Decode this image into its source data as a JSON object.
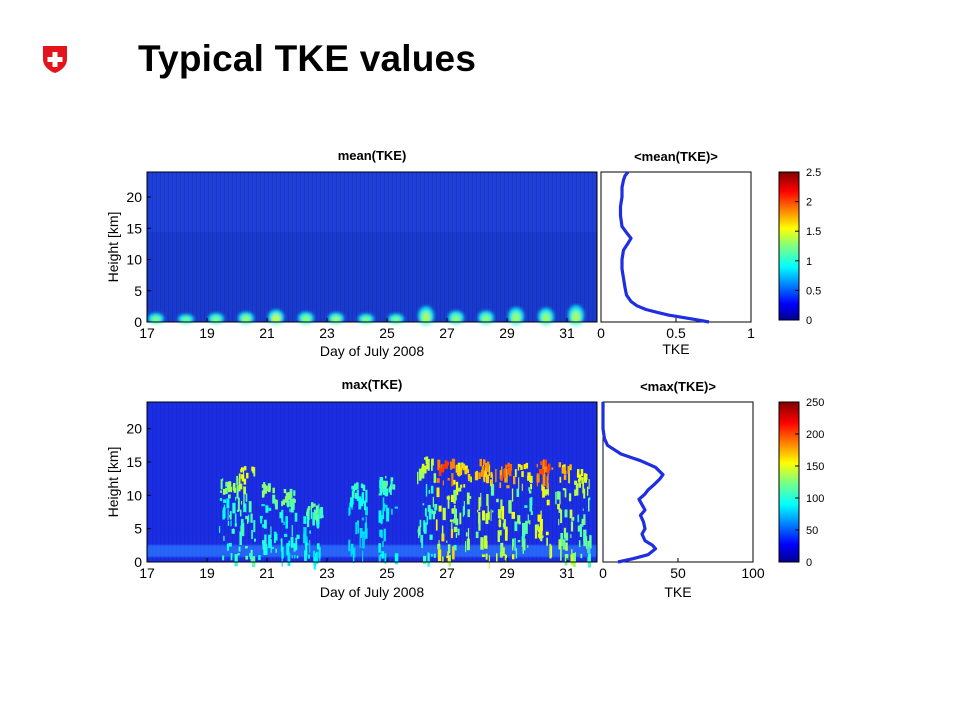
{
  "page": {
    "title": "Typical TKE values",
    "logo": "swiss-cross-shield-icon",
    "accent": "#e3141b"
  },
  "chart_data": [
    {
      "type": "heatmap",
      "title": "mean(TKE)",
      "xlabel": "Day of July 2008",
      "ylabel": "Height [km]",
      "xlim": [
        17,
        32
      ],
      "ylim": [
        0,
        24
      ],
      "xticks": [
        "17",
        "19",
        "21",
        "23",
        "25",
        "27",
        "29",
        "31"
      ],
      "yticks": [
        "0",
        "5",
        "10",
        "15",
        "20"
      ],
      "bursts": [
        {
          "day": 17.3,
          "height_top": 1.6,
          "value": 1.0
        },
        {
          "day": 18.3,
          "height_top": 1.4,
          "value": 0.9
        },
        {
          "day": 19.3,
          "height_top": 1.6,
          "value": 1.0
        },
        {
          "day": 20.3,
          "height_top": 1.8,
          "value": 1.2
        },
        {
          "day": 21.3,
          "height_top": 2.2,
          "value": 1.5
        },
        {
          "day": 22.3,
          "height_top": 1.8,
          "value": 1.1
        },
        {
          "day": 23.3,
          "height_top": 1.7,
          "value": 1.2
        },
        {
          "day": 24.3,
          "height_top": 1.5,
          "value": 1.0
        },
        {
          "day": 25.3,
          "height_top": 1.5,
          "value": 1.0
        },
        {
          "day": 26.3,
          "height_top": 2.8,
          "value": 1.3
        },
        {
          "day": 27.3,
          "height_top": 2.0,
          "value": 1.1
        },
        {
          "day": 28.3,
          "height_top": 2.0,
          "value": 1.1
        },
        {
          "day": 29.3,
          "height_top": 2.6,
          "value": 1.2
        },
        {
          "day": 30.3,
          "height_top": 2.5,
          "value": 1.2
        },
        {
          "day": 31.3,
          "height_top": 3.0,
          "value": 1.3
        }
      ],
      "colorbar": {
        "min": 0,
        "max": 2.5,
        "ticks": [
          "0",
          "0.5",
          "1",
          "1.5",
          "2",
          "2.5"
        ]
      },
      "colormap": "jet"
    },
    {
      "type": "line",
      "title": "<mean(TKE)>",
      "xlabel": "TKE",
      "xlim": [
        0,
        1
      ],
      "ylim": [
        0,
        24
      ],
      "xticks": [
        "0",
        "0.5",
        "1"
      ],
      "series": [
        {
          "color": "#1f2ee0",
          "x": [
            0.72,
            0.65,
            0.55,
            0.45,
            0.38,
            0.3,
            0.24,
            0.2,
            0.17,
            0.16,
            0.15,
            0.14,
            0.14,
            0.15,
            0.18,
            0.2,
            0.17,
            0.14,
            0.13,
            0.13,
            0.14,
            0.14,
            0.15,
            0.16,
            0.18
          ],
          "y": [
            0,
            0.3,
            0.7,
            1.1,
            1.5,
            2.0,
            2.6,
            3.3,
            4.3,
            5.5,
            7,
            8.5,
            10,
            11.5,
            12.6,
            13.4,
            14.3,
            15.3,
            17,
            18.5,
            20,
            21.5,
            22.7,
            23.4,
            24
          ]
        }
      ]
    },
    {
      "type": "heatmap",
      "title": "max(TKE)",
      "xlabel": "Day of July 2008",
      "ylabel": "Height [km]",
      "xlim": [
        17,
        32
      ],
      "ylim": [
        0,
        24
      ],
      "xticks": [
        "17",
        "19",
        "21",
        "23",
        "25",
        "27",
        "29",
        "31"
      ],
      "yticks": [
        "0",
        "5",
        "10",
        "15",
        "20"
      ],
      "columns": [
        {
          "day": 19.7,
          "height_top": 13,
          "value": 95
        },
        {
          "day": 20.3,
          "height_top": 14.5,
          "value": 120
        },
        {
          "day": 21.0,
          "height_top": 12,
          "value": 90
        },
        {
          "day": 21.7,
          "height_top": 11,
          "value": 85
        },
        {
          "day": 22.5,
          "height_top": 9,
          "value": 75
        },
        {
          "day": 24.0,
          "height_top": 12,
          "value": 60
        },
        {
          "day": 25.0,
          "height_top": 13,
          "value": 70
        },
        {
          "day": 26.3,
          "height_top": 16,
          "value": 110
        },
        {
          "day": 26.9,
          "height_top": 15.5,
          "value": 190
        },
        {
          "day": 27.5,
          "height_top": 15,
          "value": 140
        },
        {
          "day": 28.2,
          "height_top": 15.5,
          "value": 160
        },
        {
          "day": 28.9,
          "height_top": 15,
          "value": 175
        },
        {
          "day": 29.5,
          "height_top": 15,
          "value": 130
        },
        {
          "day": 30.2,
          "height_top": 15.5,
          "value": 185
        },
        {
          "day": 30.9,
          "height_top": 15,
          "value": 150
        },
        {
          "day": 31.5,
          "height_top": 14,
          "value": 120
        }
      ],
      "colorbar": {
        "min": 0,
        "max": 250,
        "ticks": [
          "0",
          "50",
          "100",
          "150",
          "200",
          "250"
        ]
      },
      "colormap": "jet"
    },
    {
      "type": "line",
      "title": "<max(TKE)>",
      "xlabel": "TKE",
      "xlim": [
        0,
        100
      ],
      "ylim": [
        0,
        24
      ],
      "xticks": [
        "0",
        "50",
        "100"
      ],
      "series": [
        {
          "color": "#1f2ee0",
          "x": [
            10,
            20,
            30,
            35,
            33,
            28,
            26,
            28,
            27,
            25,
            28,
            26,
            24,
            28,
            30,
            34,
            38,
            40,
            35,
            25,
            12,
            3,
            1,
            0,
            0
          ],
          "y": [
            0,
            0.5,
            1.1,
            2.0,
            2.5,
            3.2,
            4.2,
            5.0,
            6.0,
            7.0,
            7.8,
            8.6,
            9.4,
            10.2,
            10.8,
            11.6,
            12.5,
            13.1,
            14.2,
            15.2,
            16.2,
            17.5,
            18.5,
            20,
            24
          ]
        }
      ]
    }
  ]
}
